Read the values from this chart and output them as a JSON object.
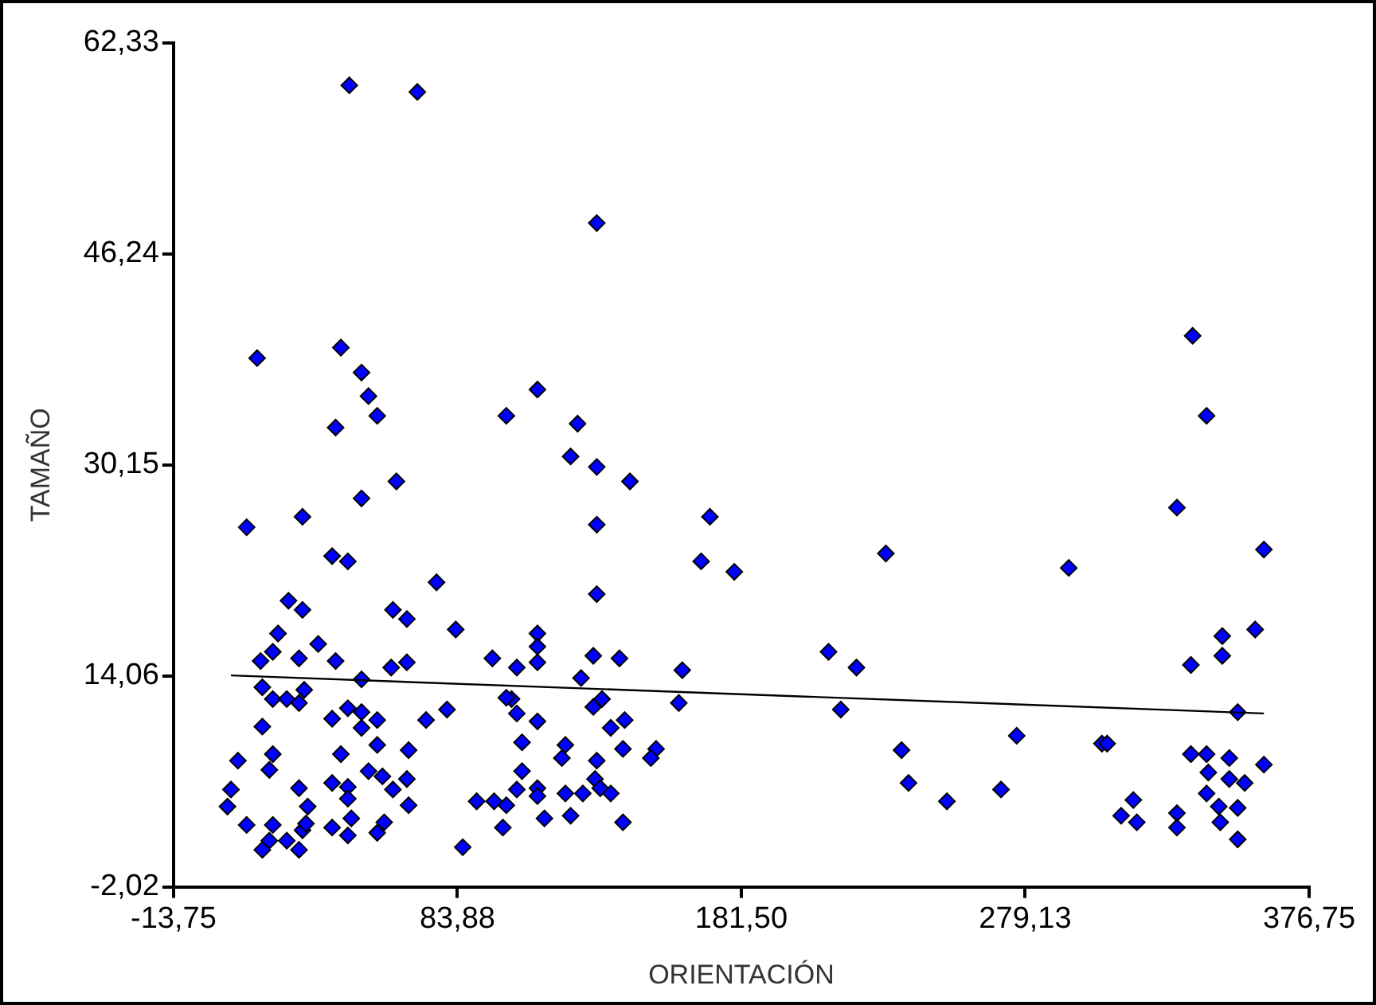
{
  "chart_data": {
    "type": "scatter",
    "xlabel": "ORIENTACIÓN",
    "ylabel": "TAMAÑO",
    "xlim": [
      -13.75,
      376.75
    ],
    "ylim": [
      -2.02,
      62.33
    ],
    "xticks": [
      {
        "value": -13.75,
        "label": "-13,75"
      },
      {
        "value": 83.88,
        "label": "83,88"
      },
      {
        "value": 181.5,
        "label": "181,50"
      },
      {
        "value": 279.13,
        "label": "279,13"
      },
      {
        "value": 376.75,
        "label": "376,75"
      }
    ],
    "yticks": [
      {
        "value": -2.02,
        "label": "-2,02"
      },
      {
        "value": 14.06,
        "label": "14,06"
      },
      {
        "value": 30.15,
        "label": "30,15"
      },
      {
        "value": 46.24,
        "label": "46,24"
      },
      {
        "value": 62.33,
        "label": "62,33"
      }
    ],
    "grid": false,
    "legend": false,
    "series": [
      {
        "marker": "diamond",
        "color": "#0000ff",
        "x": [
          46.7,
          70.1,
          15.0,
          43.8,
          50.9,
          53.3,
          56.3,
          42.0,
          100.7,
          131.8,
          111.4,
          125.2,
          122.8,
          131.8,
          143.2,
          131.8,
          170.7,
          167.7,
          179.1,
          131.8,
          11.4,
          30.6,
          50.9,
          62.9,
          40.8,
          46.2,
          76.7,
          25.8,
          30.6,
          61.7,
          66.5,
          83.3,
          22.2,
          36.0,
          20.4,
          16.2,
          29.4,
          42.0,
          61.1,
          66.5,
          95.9,
          50.9,
          16.8,
          31.2,
          20.4,
          25.2,
          29.4,
          102.5,
          46.2,
          50.9,
          40.8,
          56.3,
          73.1,
          80.3,
          16.8,
          50.9,
          56.3,
          67.1,
          43.8,
          20.4,
          8.4,
          19.2,
          53.3,
          58.1,
          40.8,
          46.2,
          29.4,
          61.7,
          66.5,
          6.0,
          46.2,
          32.4,
          4.8,
          90.5,
          96.5,
          67.1,
          47.4,
          11.4,
          20.4,
          30.6,
          40.8,
          58.7,
          31.8,
          99.5,
          46.2,
          56.3,
          25.2,
          19.2,
          16.8,
          29.4,
          85.7,
          111.4,
          111.4,
          104.3,
          111.4,
          130.6,
          139.6,
          161.2,
          126.4,
          100.7,
          104.3,
          111.4,
          130.6,
          133.6,
          160.0,
          141.4,
          136.6,
          106.1,
          121.0,
          119.8,
          140.8,
          152.2,
          150.4,
          131.8,
          106.1,
          104.3,
          111.4,
          131.2,
          133.0,
          121.0,
          127.0,
          136.6,
          100.7,
          111.4,
          113.8,
          122.8,
          140.8,
          211.5,
          221.1,
          231.2,
          215.7,
          236.6,
          239.0,
          252.2,
          270.8,
          276.2,
          294.1,
          305.5,
          336.7,
          341.5,
          331.3,
          361.2,
          358.2,
          346.9,
          346.9,
          336.1,
          352.2,
          307.3,
          336.1,
          341.5,
          349.3,
          361.2,
          342.1,
          349.3,
          354.6,
          341.5,
          345.7,
          352.2,
          346.2,
          352.2,
          316.3,
          312.1,
          317.5,
          331.3,
          331.3
        ],
        "values": [
          59.1,
          58.6,
          38.3,
          39.1,
          37.2,
          35.4,
          33.9,
          33.0,
          33.9,
          48.6,
          35.9,
          33.3,
          30.8,
          30.0,
          28.9,
          25.6,
          26.2,
          22.8,
          22.0,
          20.3,
          25.4,
          26.2,
          27.6,
          28.9,
          23.2,
          22.8,
          21.2,
          19.8,
          19.1,
          19.1,
          18.4,
          17.6,
          17.3,
          16.5,
          15.9,
          15.2,
          15.4,
          15.2,
          14.7,
          15.1,
          15.4,
          13.8,
          13.2,
          13.0,
          12.3,
          12.3,
          12.0,
          12.3,
          11.6,
          11.3,
          10.8,
          10.7,
          10.7,
          11.5,
          10.2,
          10.1,
          8.8,
          8.4,
          8.1,
          8.1,
          7.6,
          6.9,
          6.8,
          6.4,
          5.9,
          5.6,
          5.5,
          5.4,
          6.2,
          5.4,
          4.7,
          4.1,
          4.1,
          4.5,
          4.5,
          4.2,
          3.2,
          2.7,
          2.7,
          2.3,
          2.5,
          2.9,
          2.8,
          2.5,
          1.9,
          2.1,
          1.5,
          1.5,
          0.8,
          0.8,
          1.0,
          17.3,
          16.3,
          14.7,
          15.1,
          15.6,
          15.4,
          14.5,
          13.9,
          12.4,
          11.2,
          10.6,
          11.7,
          12.3,
          12.0,
          10.7,
          10.1,
          9.0,
          8.8,
          7.8,
          8.5,
          8.5,
          7.8,
          7.6,
          6.8,
          5.4,
          5.5,
          6.2,
          5.5,
          5.1,
          5.1,
          5.1,
          4.2,
          4.9,
          3.2,
          3.4,
          2.9,
          15.9,
          14.7,
          23.4,
          11.5,
          8.4,
          5.9,
          4.5,
          5.4,
          9.5,
          22.3,
          8.9,
          40.0,
          33.9,
          26.9,
          23.7,
          17.6,
          17.1,
          15.6,
          14.9,
          11.3,
          8.9,
          8.1,
          8.1,
          7.8,
          7.3,
          6.7,
          6.2,
          5.9,
          5.1,
          4.1,
          4.0,
          2.9,
          1.6,
          4.6,
          3.4,
          2.9,
          3.6,
          2.5
        ]
      },
      {
        "type": "line",
        "marker": "none",
        "color": "#000000",
        "x": [
          6.0,
          361.2
        ],
        "values": [
          14.1,
          11.2
        ]
      }
    ]
  }
}
